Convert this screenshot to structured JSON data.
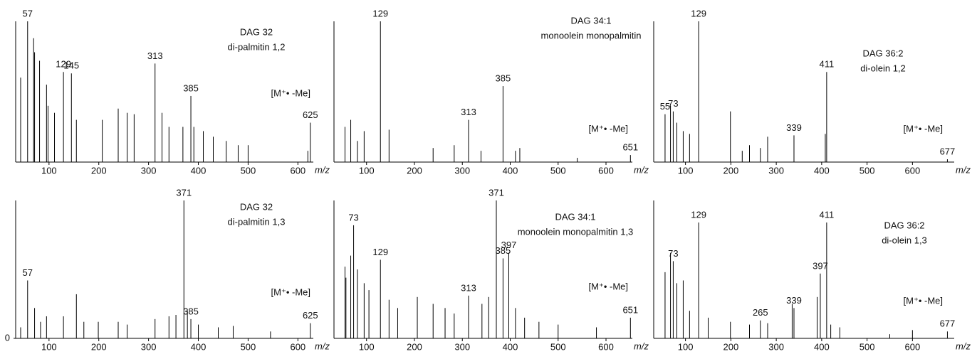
{
  "chart_data": [
    {
      "type": "bar",
      "title": "DAG 32",
      "subtitle": "di-palmitin 1,2",
      "annotation": "[M⁺• -Me]",
      "xlabel": "m/z",
      "xlim": [
        33,
        631
      ],
      "xticks": [
        100,
        200,
        300,
        400,
        500,
        600
      ],
      "ylim": [
        0,
        100
      ],
      "series": [
        {
          "color": "#000000",
          "x": [
            43,
            69,
            71,
            81,
            95,
            98,
            111,
            155,
            207,
            239,
            257,
            271,
            327,
            341,
            369,
            391,
            410,
            430,
            456,
            480,
            500,
            620
          ],
          "values": [
            60,
            88,
            78,
            72,
            55,
            40,
            35,
            30,
            30,
            38,
            35,
            34,
            35,
            25,
            25,
            25,
            22,
            18,
            15,
            12,
            12,
            8
          ]
        },
        {
          "color": "#000000",
          "peak_labels": true,
          "label_color": "#1a1a8c",
          "x": [
            57,
            129,
            145,
            313,
            385,
            625
          ],
          "values": [
            100,
            64,
            63,
            70,
            47,
            28
          ]
        }
      ]
    },
    {
      "type": "bar",
      "title": "DAG 34:1",
      "subtitle": "monoolein monopalmitin",
      "annotation": "[M⁺• -Me]",
      "xlabel": "m/z",
      "xlim": [
        32,
        655
      ],
      "xticks": [
        100,
        200,
        300,
        400,
        500,
        600
      ],
      "ylim": [
        0,
        100
      ],
      "series": [
        {
          "color": "#000000",
          "x": [
            55,
            67,
            81,
            95,
            147,
            239,
            283,
            339,
            411,
            420,
            540
          ],
          "values": [
            25,
            30,
            15,
            22,
            23,
            10,
            12,
            8,
            8,
            10,
            3
          ]
        },
        {
          "color": "#000000",
          "peak_labels": true,
          "label_color": "#1a1a8c",
          "x": [
            129,
            313,
            385,
            651
          ],
          "values": [
            100,
            30,
            54,
            5
          ]
        }
      ]
    },
    {
      "type": "bar",
      "title": "DAG 36:2",
      "subtitle": "di-olein 1,2",
      "annotation": "[M⁺• -Me]",
      "xlabel": "m/z",
      "xlim": [
        30,
        692
      ],
      "xticks": [
        100,
        200,
        300,
        400,
        500,
        600
      ],
      "ylim": [
        0,
        100
      ],
      "series": [
        {
          "color": "#000000",
          "x": [
            67,
            81,
            95,
            109,
            199,
            225,
            241,
            265,
            281,
            408
          ],
          "values": [
            40,
            28,
            22,
            20,
            36,
            8,
            12,
            10,
            18,
            20
          ]
        },
        {
          "color": "#000000",
          "peak_labels": true,
          "label_color": "#1a1a8c",
          "x": [
            55,
            73,
            129,
            339,
            411,
            677
          ],
          "values": [
            34,
            36,
            100,
            19,
            64,
            2
          ]
        }
      ]
    },
    {
      "type": "bar",
      "title": "DAG 32",
      "subtitle": "di-palmitin 1,3",
      "annotation": "[M⁺• -Me]",
      "xlabel": "m/z",
      "xlim": [
        33,
        631
      ],
      "xticks": [
        100,
        200,
        300,
        400,
        500,
        600
      ],
      "ylim": [
        0,
        100
      ],
      "yticks": [
        0
      ],
      "series": [
        {
          "color": "#000000",
          "x": [
            43,
            71,
            83,
            95,
            129,
            155,
            170,
            199,
            239,
            257,
            313,
            341,
            355,
            378,
            400,
            440,
            470,
            545
          ],
          "values": [
            8,
            22,
            12,
            16,
            16,
            32,
            12,
            12,
            12,
            10,
            14,
            16,
            17,
            20,
            10,
            8,
            9,
            5
          ]
        },
        {
          "color": "#000000",
          "peak_labels": true,
          "label_color": "#1a1a8c",
          "x": [
            57,
            371,
            385,
            625
          ],
          "values": [
            42,
            100,
            14,
            11
          ]
        }
      ]
    },
    {
      "type": "bar",
      "title": "DAG 34:1",
      "subtitle": "monoolein monopalmitin 1,3",
      "annotation": "[M⁺• -Me]",
      "xlabel": "m/z",
      "xlim": [
        32,
        655
      ],
      "xticks": [
        100,
        200,
        300,
        400,
        500,
        600
      ],
      "ylim": [
        0,
        100
      ],
      "series": [
        {
          "color": "#000000",
          "x": [
            55,
            57,
            67,
            81,
            95,
            105,
            147,
            165,
            206,
            239,
            264,
            283,
            341,
            355,
            411,
            430,
            460,
            500,
            580
          ],
          "values": [
            52,
            44,
            60,
            50,
            40,
            35,
            28,
            22,
            30,
            25,
            22,
            18,
            25,
            30,
            22,
            15,
            12,
            10,
            8
          ]
        },
        {
          "color": "#000000",
          "peak_labels": true,
          "label_color": "#1a1a8c",
          "x": [
            73,
            129,
            313,
            371,
            385,
            397,
            651
          ],
          "values": [
            82,
            57,
            31,
            100,
            58,
            62,
            15
          ]
        }
      ]
    },
    {
      "type": "bar",
      "title": "DAG 36:2",
      "subtitle": "di-olein 1,3",
      "annotation": "[M⁺• -Me]",
      "xlabel": "m/z",
      "xlim": [
        30,
        692
      ],
      "xticks": [
        100,
        200,
        300,
        400,
        500,
        600
      ],
      "ylim": [
        0,
        100
      ],
      "series": [
        {
          "color": "#000000",
          "x": [
            55,
            67,
            81,
            95,
            109,
            150,
            199,
            241,
            281,
            335,
            390,
            420,
            440,
            550,
            600
          ],
          "values": [
            48,
            62,
            40,
            42,
            20,
            15,
            12,
            10,
            11,
            25,
            30,
            10,
            8,
            3,
            6
          ]
        },
        {
          "color": "#000000",
          "peak_labels": true,
          "label_color": "#1a1a8c",
          "x": [
            73,
            129,
            265,
            339,
            397,
            411,
            677
          ],
          "values": [
            56,
            84,
            13,
            22,
            47,
            84,
            5
          ]
        }
      ]
    }
  ]
}
